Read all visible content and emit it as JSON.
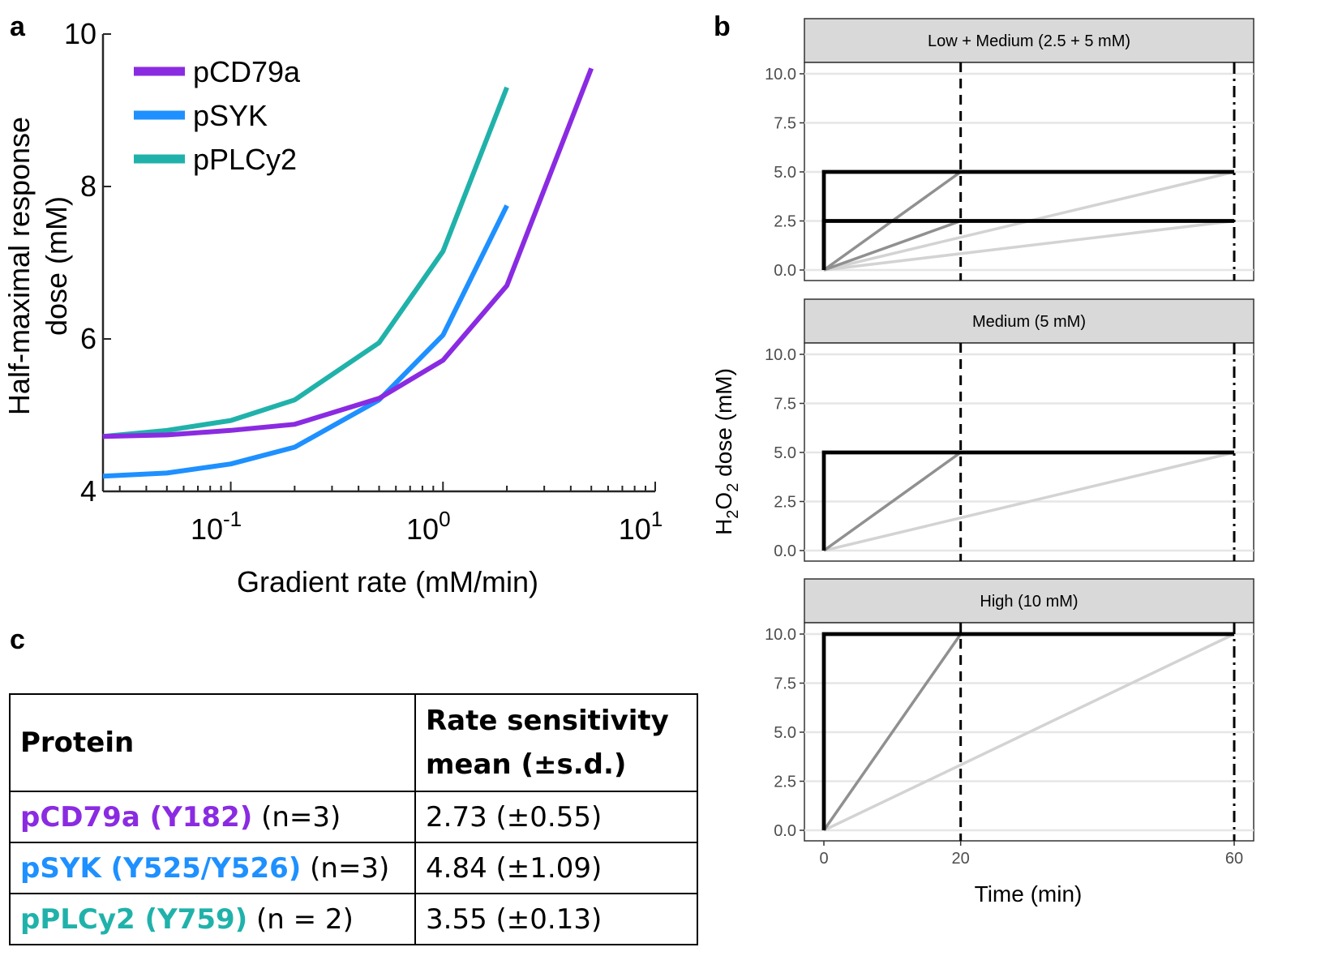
{
  "panel_labels": {
    "a": "a",
    "b": "b",
    "c": "c"
  },
  "colors": {
    "pCD79a": "#8a2be2",
    "pSYK": "#1e90ff",
    "pPLCy2": "#20b2aa",
    "step": "#000000",
    "fast": "#909090",
    "slow": "#d3d3d3",
    "strip": "#d9d9d9",
    "grid": "#e6e6e6"
  },
  "chart_data": [
    {
      "id": "a",
      "type": "line",
      "xlabel": "Gradient rate (mM/min)",
      "ylabel": [
        "Half-maximal response",
        "dose (mM)"
      ],
      "xscale": "log",
      "xlim": [
        0.025,
        10
      ],
      "ylim": [
        4,
        10
      ],
      "yticks": [
        "4",
        "6",
        "8",
        "10"
      ],
      "xticks": [
        {
          "base": "10",
          "exp": "-1",
          "value": 0.1
        },
        {
          "base": "10",
          "exp": "0",
          "value": 1
        },
        {
          "base": "10",
          "exp": "1",
          "value": 10
        }
      ],
      "legend": "top-left",
      "series": [
        {
          "name": "pCD79a",
          "color": "#8a2be2",
          "x": [
            0.025,
            0.05,
            0.1,
            0.2,
            0.5,
            1.0,
            2.0,
            5.0
          ],
          "y": [
            4.72,
            4.74,
            4.8,
            4.88,
            5.22,
            5.72,
            6.7,
            9.55
          ]
        },
        {
          "name": "pSYK",
          "color": "#1e90ff",
          "x": [
            0.025,
            0.05,
            0.1,
            0.2,
            0.5,
            1.0,
            2.0
          ],
          "y": [
            4.2,
            4.24,
            4.36,
            4.58,
            5.2,
            6.05,
            7.75
          ]
        },
        {
          "name": "pPLCy2",
          "color": "#20b2aa",
          "x": [
            0.025,
            0.05,
            0.1,
            0.2,
            0.5,
            1.0,
            2.0
          ],
          "y": [
            4.72,
            4.8,
            4.93,
            5.2,
            5.95,
            7.15,
            9.3
          ]
        }
      ]
    },
    {
      "id": "b",
      "type": "line",
      "ylabel": "H2O2 dose (mM)",
      "ylabel_parts": {
        "a": "H",
        "sub1": "2",
        "b": "O",
        "sub2": "2",
        "c": " dose (mM)"
      },
      "xlabel": "Time (min)",
      "xlim": [
        0,
        60
      ],
      "ylim": [
        0,
        10
      ],
      "yticks": [
        "0.0",
        "2.5",
        "5.0",
        "7.5",
        "10.0"
      ],
      "xticks": [
        "0",
        "20",
        "60"
      ],
      "vlines": [
        {
          "x": 20,
          "style": "dashed"
        },
        {
          "x": 60,
          "style": "dashdot"
        }
      ],
      "facets": [
        {
          "title": "Low + Medium (2.5 + 5 mM)",
          "targets": [
            5,
            2.5
          ]
        },
        {
          "title": "Medium (5 mM)",
          "targets": [
            5
          ]
        },
        {
          "title": "High (10 mM)",
          "targets": [
            10
          ]
        }
      ],
      "profiles": [
        {
          "kind": "step",
          "reach_time": 0,
          "color": "#000000"
        },
        {
          "kind": "gradient",
          "reach_time": 20,
          "color": "#909090"
        },
        {
          "kind": "gradient",
          "reach_time": 60,
          "color": "#d3d3d3"
        }
      ]
    },
    {
      "id": "c",
      "type": "table",
      "header": {
        "protein": "Protein",
        "rate_line1": "Rate sensitivity",
        "rate_line2": "mean (±s.d.)"
      },
      "rows": [
        {
          "protein": "pCD79a (Y182)",
          "n": "(n=3)",
          "value": "2.73 (±0.55)",
          "color": "#8a2be2"
        },
        {
          "protein": "pSYK (Y525/Y526)",
          "n": "(n=3)",
          "value": "4.84 (±1.09)",
          "color": "#1e90ff"
        },
        {
          "protein": "pPLCy2 (Y759)",
          "n": "(n = 2)",
          "value": "3.55 (±0.13)",
          "color": "#20b2aa"
        }
      ]
    }
  ]
}
